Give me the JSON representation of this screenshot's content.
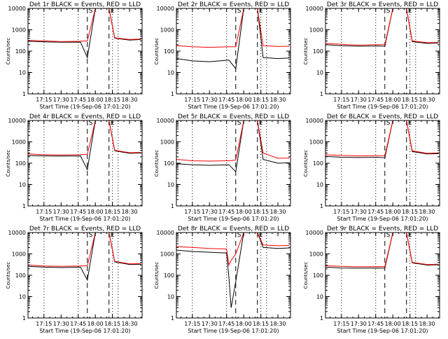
{
  "figure": {
    "xtick_labels": [
      "17:15",
      "17:30",
      "17:45",
      "18:00",
      "18:15",
      "18:30"
    ],
    "ytick_labels": [
      "1",
      "10",
      "100",
      "1000",
      "10000"
    ],
    "ylabel": "Counts/sec",
    "xlabel": "Start Time (19-Sep-06 17:01:20)",
    "marker_labels": [
      "S",
      "E"
    ]
  },
  "colors": {
    "events": "#000000",
    "lld": "#ff0000"
  },
  "chart_data": [
    {
      "type": "line",
      "title": "Det 1r BLACK = Events, RED = LLD",
      "xlabel": "Start Time (19-Sep-06 17:01:20)",
      "ylabel": "Counts/sec",
      "ylim": [
        1,
        10000
      ],
      "yscale": "log",
      "x_range": [
        "17:01",
        "18:40"
      ],
      "series": [
        {
          "name": "Events",
          "color": "#000000",
          "x": [
            "17:01",
            "17:15",
            "17:30",
            "17:47",
            "17:53",
            "18:00",
            "18:12",
            "18:17",
            "18:30",
            "18:40"
          ],
          "values": [
            290,
            270,
            260,
            265,
            50,
            10000,
            10000,
            400,
            330,
            350
          ]
        },
        {
          "name": "LLD",
          "color": "#ff0000",
          "x": [
            "17:01",
            "17:15",
            "17:30",
            "17:47",
            "17:53",
            "18:00",
            "18:12",
            "18:17",
            "18:30",
            "18:40"
          ],
          "values": [
            320,
            300,
            280,
            290,
            300,
            10000,
            10000,
            420,
            350,
            370
          ]
        }
      ]
    },
    {
      "type": "line",
      "title": "Det 2r BLACK = Events, RED = LLD",
      "xlabel": "Start Time (19-Sep-06 17:01:20)",
      "ylabel": "Counts/sec",
      "ylim": [
        1,
        10000
      ],
      "yscale": "log",
      "x_range": [
        "17:01",
        "18:40"
      ],
      "series": [
        {
          "name": "Events",
          "color": "#000000",
          "x": [
            "17:01",
            "17:15",
            "17:30",
            "17:47",
            "17:53",
            "18:00",
            "18:12",
            "18:17",
            "18:30",
            "18:40"
          ],
          "values": [
            45,
            35,
            32,
            38,
            15,
            10000,
            10000,
            50,
            45,
            48
          ]
        },
        {
          "name": "LLD",
          "color": "#ff0000",
          "x": [
            "17:01",
            "17:15",
            "17:30",
            "17:47",
            "17:53",
            "18:00",
            "18:12",
            "18:17",
            "18:30",
            "18:40"
          ],
          "values": [
            180,
            160,
            150,
            160,
            160,
            10000,
            10000,
            180,
            165,
            170
          ]
        }
      ]
    },
    {
      "type": "line",
      "title": "Det 3r BLACK = Events, RED = LLD",
      "xlabel": "Start Time (19-Sep-06 17:01:20)",
      "ylabel": "Counts/sec",
      "ylim": [
        1,
        10000
      ],
      "yscale": "log",
      "x_range": [
        "17:01",
        "18:40"
      ],
      "series": [
        {
          "name": "Events",
          "color": "#000000",
          "x": [
            "17:01",
            "17:15",
            "17:30",
            "17:47",
            "17:53",
            "18:00",
            "18:12",
            "18:17",
            "18:30",
            "18:40"
          ],
          "values": [
            200,
            180,
            170,
            175,
            170,
            10000,
            10000,
            280,
            230,
            240
          ]
        },
        {
          "name": "LLD",
          "color": "#ff0000",
          "x": [
            "17:01",
            "17:15",
            "17:30",
            "17:47",
            "17:53",
            "18:00",
            "18:12",
            "18:17",
            "18:30",
            "18:40"
          ],
          "values": [
            230,
            210,
            190,
            200,
            200,
            10000,
            10000,
            300,
            250,
            255
          ]
        }
      ]
    },
    {
      "type": "line",
      "title": "Det 4r BLACK = Events, RED = LLD",
      "xlabel": "Start Time (19-Sep-06 17:01:20)",
      "ylabel": "Counts/sec",
      "ylim": [
        1,
        10000
      ],
      "yscale": "log",
      "x_range": [
        "17:01",
        "18:40"
      ],
      "series": [
        {
          "name": "Events",
          "color": "#000000",
          "x": [
            "17:01",
            "17:15",
            "17:30",
            "17:47",
            "17:53",
            "18:00",
            "18:12",
            "18:17",
            "18:30",
            "18:40"
          ],
          "values": [
            230,
            220,
            215,
            220,
            50,
            10000,
            10000,
            380,
            290,
            300
          ]
        },
        {
          "name": "LLD",
          "color": "#ff0000",
          "x": [
            "17:01",
            "17:15",
            "17:30",
            "17:47",
            "17:53",
            "18:00",
            "18:12",
            "18:17",
            "18:30",
            "18:40"
          ],
          "values": [
            270,
            250,
            240,
            250,
            260,
            10000,
            10000,
            400,
            310,
            320
          ]
        }
      ]
    },
    {
      "type": "line",
      "title": "Det 5r BLACK = Events, RED = LLD",
      "xlabel": "Start Time (19-Sep-06 17:01:20)",
      "ylabel": "Counts/sec",
      "ylim": [
        1,
        10000
      ],
      "yscale": "log",
      "x_range": [
        "17:01",
        "18:40"
      ],
      "series": [
        {
          "name": "Events",
          "color": "#000000",
          "x": [
            "17:01",
            "17:15",
            "17:30",
            "17:47",
            "17:53",
            "18:00",
            "18:12",
            "18:17",
            "18:30",
            "18:40"
          ],
          "values": [
            95,
            85,
            80,
            85,
            40,
            10000,
            10000,
            150,
            100,
            105
          ]
        },
        {
          "name": "LLD",
          "color": "#ff0000",
          "x": [
            "17:01",
            "17:15",
            "17:30",
            "17:47",
            "17:53",
            "18:00",
            "18:12",
            "18:17",
            "18:30",
            "18:40"
          ],
          "values": [
            150,
            130,
            125,
            130,
            140,
            10000,
            10000,
            300,
            170,
            175
          ]
        }
      ]
    },
    {
      "type": "line",
      "title": "Det 6r BLACK = Events, RED = LLD",
      "xlabel": "Start Time (19-Sep-06 17:01:20)",
      "ylabel": "Counts/sec",
      "ylim": [
        1,
        10000
      ],
      "yscale": "log",
      "x_range": [
        "17:01",
        "18:40"
      ],
      "series": [
        {
          "name": "Events",
          "color": "#000000",
          "x": [
            "17:01",
            "17:15",
            "17:30",
            "17:47",
            "17:53",
            "18:00",
            "18:12",
            "18:17",
            "18:30",
            "18:40"
          ],
          "values": [
            210,
            190,
            185,
            190,
            180,
            10000,
            10000,
            350,
            270,
            280
          ]
        },
        {
          "name": "LLD",
          "color": "#ff0000",
          "x": [
            "17:01",
            "17:15",
            "17:30",
            "17:47",
            "17:53",
            "18:00",
            "18:12",
            "18:17",
            "18:30",
            "18:40"
          ],
          "values": [
            250,
            230,
            220,
            225,
            225,
            10000,
            10000,
            380,
            290,
            300
          ]
        }
      ]
    },
    {
      "type": "line",
      "title": "Det 7r BLACK = Events, RED = LLD",
      "xlabel": "Start Time (19-Sep-06 17:01:20)",
      "ylabel": "Counts/sec",
      "ylim": [
        1,
        10000
      ],
      "yscale": "log",
      "x_range": [
        "17:01",
        "18:40"
      ],
      "series": [
        {
          "name": "Events",
          "color": "#000000",
          "x": [
            "17:01",
            "17:15",
            "17:30",
            "17:47",
            "17:53",
            "18:00",
            "18:12",
            "18:17",
            "18:30",
            "18:40"
          ],
          "values": [
            260,
            240,
            230,
            240,
            60,
            10000,
            10000,
            420,
            320,
            330
          ]
        },
        {
          "name": "LLD",
          "color": "#ff0000",
          "x": [
            "17:01",
            "17:15",
            "17:30",
            "17:47",
            "17:53",
            "18:00",
            "18:12",
            "18:17",
            "18:30",
            "18:40"
          ],
          "values": [
            300,
            270,
            260,
            270,
            280,
            10000,
            10000,
            450,
            340,
            350
          ]
        }
      ]
    },
    {
      "type": "line",
      "title": "Det 8r BLACK = Events, RED = LLD",
      "xlabel": "Start Time (19-Sep-06 17:01:20)",
      "ylabel": "Counts/sec",
      "ylim": [
        1,
        10000
      ],
      "yscale": "log",
      "x_range": [
        "17:01",
        "18:40"
      ],
      "series": [
        {
          "name": "Events",
          "color": "#000000",
          "x": [
            "17:01",
            "17:15",
            "17:30",
            "17:45",
            "17:47",
            "17:49",
            "17:53",
            "18:00",
            "18:12",
            "18:17",
            "18:30",
            "18:40"
          ],
          "values": [
            1500,
            1300,
            1200,
            1100,
            80,
            3,
            50,
            10000,
            10000,
            2000,
            1800,
            1900
          ]
        },
        {
          "name": "LLD",
          "color": "#ff0000",
          "x": [
            "17:01",
            "17:15",
            "17:30",
            "17:45",
            "17:47",
            "17:49",
            "17:53",
            "18:00",
            "18:12",
            "18:17",
            "18:30",
            "18:40"
          ],
          "values": [
            2200,
            2000,
            1800,
            1700,
            300,
            500,
            1000,
            10000,
            10000,
            2600,
            2400,
            2500
          ]
        }
      ]
    },
    {
      "type": "line",
      "title": "Det 9r BLACK = Events, RED = LLD",
      "xlabel": "Start Time (19-Sep-06 17:01:20)",
      "ylabel": "Counts/sec",
      "ylim": [
        1,
        10000
      ],
      "yscale": "log",
      "x_range": [
        "17:01",
        "18:40"
      ],
      "series": [
        {
          "name": "Events",
          "color": "#000000",
          "x": [
            "17:01",
            "17:15",
            "17:30",
            "17:47",
            "17:53",
            "18:00",
            "18:12",
            "18:17",
            "18:30",
            "18:40"
          ],
          "values": [
            240,
            220,
            215,
            220,
            215,
            10000,
            10000,
            380,
            300,
            310
          ]
        },
        {
          "name": "LLD",
          "color": "#ff0000",
          "x": [
            "17:01",
            "17:15",
            "17:30",
            "17:47",
            "17:53",
            "18:00",
            "18:12",
            "18:17",
            "18:30",
            "18:40"
          ],
          "values": [
            280,
            260,
            250,
            255,
            255,
            10000,
            10000,
            400,
            320,
            330
          ]
        }
      ]
    }
  ],
  "markers": {
    "dotted": [
      "17:15",
      "17:45",
      "18:15",
      "18:20"
    ],
    "dashed": [
      "17:53",
      "18:12"
    ]
  }
}
